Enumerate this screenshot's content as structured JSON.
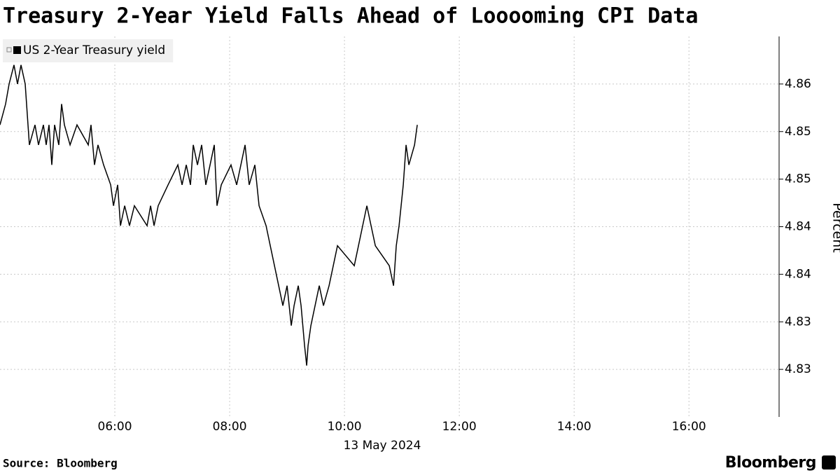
{
  "chart_data": {
    "type": "line",
    "title": "Treasury 2-Year Yield Falls Ahead of Looooming CPI Data",
    "ylabel": "Percent",
    "date_label": "13 May 2024",
    "source": "Source: Bloomberg",
    "brand": "Bloomberg",
    "grid": true,
    "legend": "top-left",
    "xlim": [
      4.0,
      17.57
    ],
    "xticks": [
      {
        "value": 6,
        "label": "06:00"
      },
      {
        "value": 8,
        "label": "08:00"
      },
      {
        "value": 10,
        "label": "10:00"
      },
      {
        "value": 12,
        "label": "12:00"
      },
      {
        "value": 14,
        "label": "14:00"
      },
      {
        "value": 16,
        "label": "16:00"
      }
    ],
    "ylim": [
      4.825,
      4.865
    ],
    "yticks": [
      {
        "value": 4.86,
        "label": "4.86"
      },
      {
        "value": 4.855,
        "label": "4.85"
      },
      {
        "value": 4.85,
        "label": "4.85"
      },
      {
        "value": 4.845,
        "label": "4.84"
      },
      {
        "value": 4.84,
        "label": "4.84"
      },
      {
        "value": 4.835,
        "label": "4.83"
      },
      {
        "value": 4.83,
        "label": "4.83"
      }
    ],
    "series": [
      {
        "name": "US 2-Year Treasury yield",
        "color": "#000000",
        "x": [
          4.0,
          4.098,
          4.159,
          4.244,
          4.305,
          4.366,
          4.439,
          4.488,
          4.512,
          4.61,
          4.671,
          4.756,
          4.805,
          4.854,
          4.902,
          4.951,
          5.024,
          5.073,
          5.122,
          5.22,
          5.341,
          5.537,
          5.585,
          5.646,
          5.707,
          5.805,
          5.927,
          5.976,
          6.049,
          6.098,
          6.171,
          6.256,
          6.341,
          6.561,
          6.622,
          6.683,
          6.756,
          6.927,
          7.098,
          7.171,
          7.244,
          7.317,
          7.366,
          7.439,
          7.512,
          7.585,
          7.659,
          7.732,
          7.78,
          7.854,
          8.024,
          8.122,
          8.195,
          8.268,
          8.341,
          8.439,
          8.512,
          8.634,
          8.707,
          8.78,
          8.854,
          8.927,
          9.0,
          9.073,
          9.122,
          9.195,
          9.244,
          9.305,
          9.341,
          9.366,
          9.415,
          9.488,
          9.561,
          9.634,
          9.732,
          9.805,
          9.878,
          10.171,
          10.244,
          10.317,
          10.39,
          10.463,
          10.537,
          10.78,
          10.854,
          10.902,
          10.951,
          11.024,
          11.073,
          11.122,
          11.22,
          11.268
        ],
        "values": [
          4.8557,
          4.8579,
          4.86,
          4.862,
          4.86,
          4.862,
          4.86,
          4.8557,
          4.8536,
          4.8557,
          4.8536,
          4.8557,
          4.8536,
          4.8557,
          4.8515,
          4.8557,
          4.8536,
          4.8579,
          4.8557,
          4.8536,
          4.8557,
          4.8536,
          4.8557,
          4.8515,
          4.8536,
          4.8515,
          4.8494,
          4.8472,
          4.8494,
          4.8451,
          4.8472,
          4.8451,
          4.8472,
          4.8451,
          4.8472,
          4.8451,
          4.8472,
          4.8494,
          4.8515,
          4.8494,
          4.8515,
          4.8494,
          4.8536,
          4.8515,
          4.8536,
          4.8494,
          4.8515,
          4.8536,
          4.8472,
          4.8494,
          4.8515,
          4.8494,
          4.8515,
          4.8536,
          4.8494,
          4.8515,
          4.8472,
          4.8451,
          4.843,
          4.8409,
          4.8388,
          4.8367,
          4.8388,
          4.8346,
          4.8367,
          4.8388,
          4.8367,
          4.8325,
          4.8304,
          4.8325,
          4.8346,
          4.8367,
          4.8388,
          4.8367,
          4.8388,
          4.8409,
          4.843,
          4.8409,
          4.843,
          4.8451,
          4.8472,
          4.8451,
          4.843,
          4.8409,
          4.8388,
          4.843,
          4.8451,
          4.8494,
          4.8536,
          4.8515,
          4.8536,
          4.8557
        ]
      }
    ]
  }
}
